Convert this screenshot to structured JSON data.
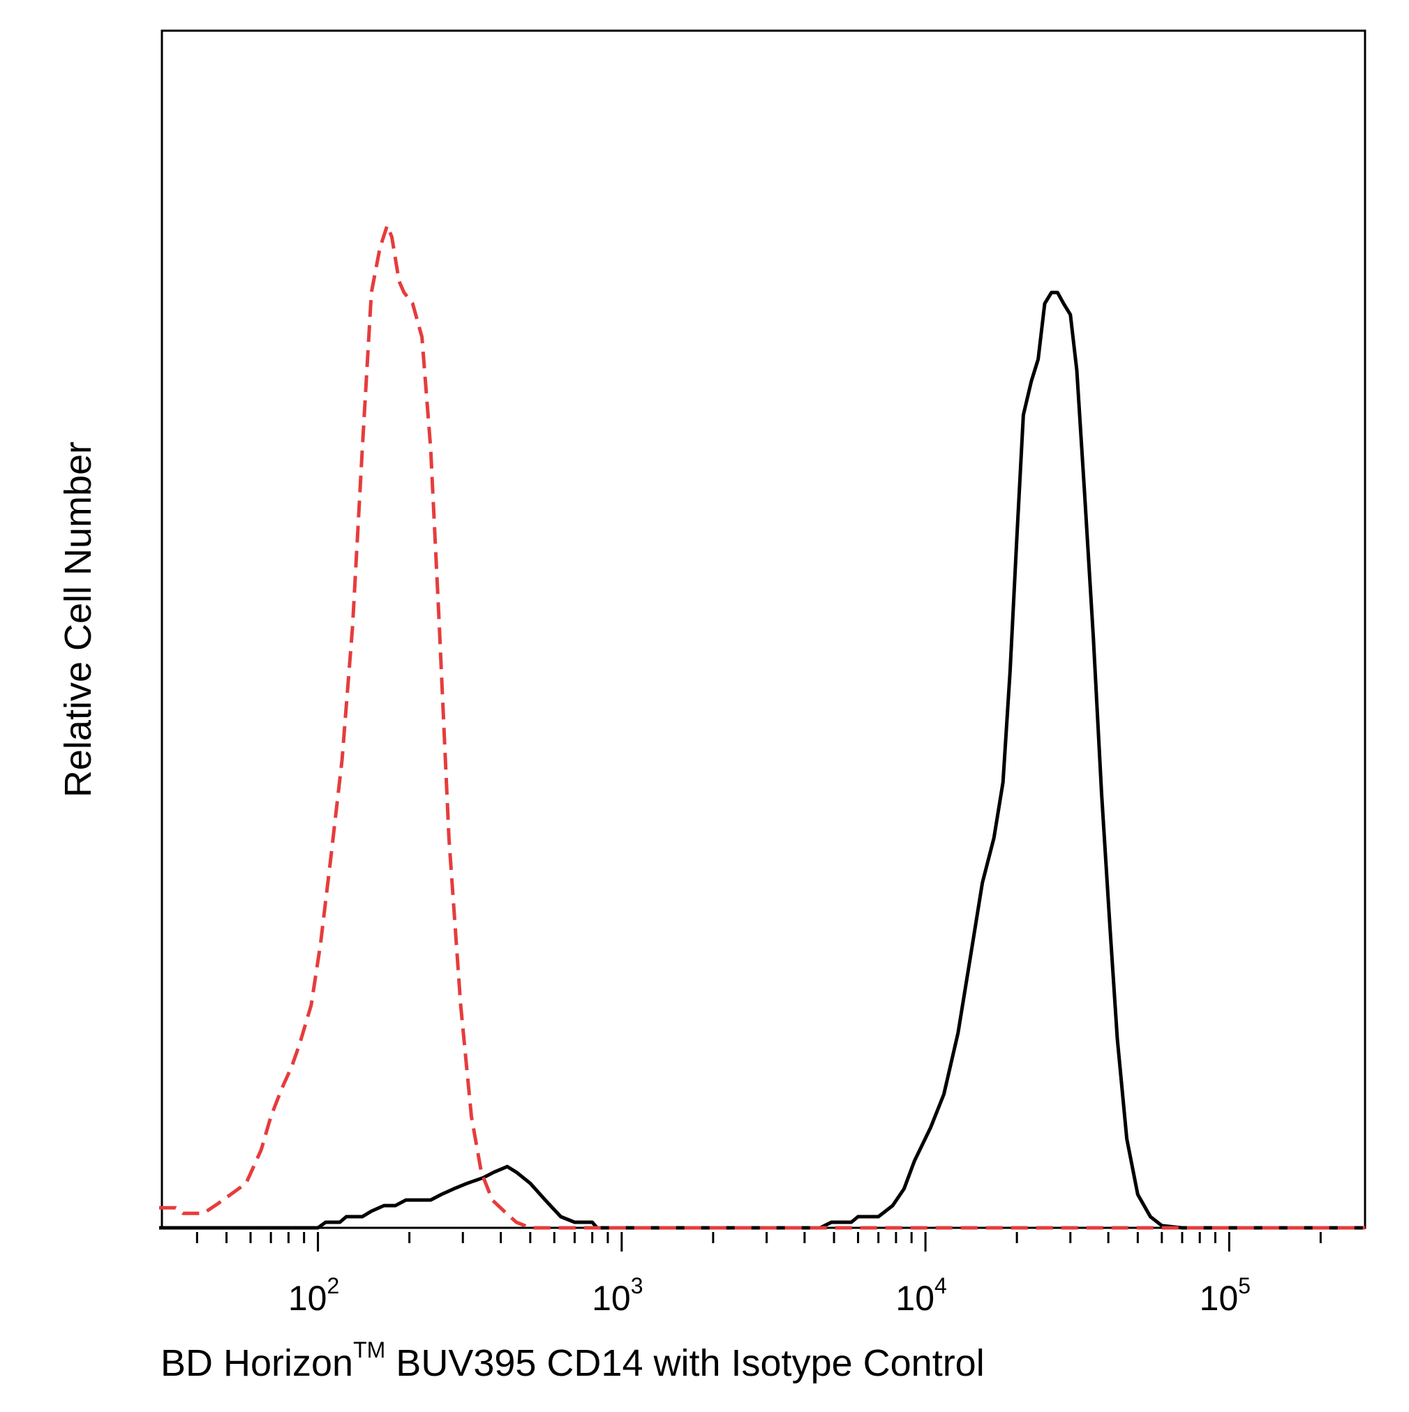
{
  "chart_data": {
    "type": "line",
    "title": "",
    "xlabel": {
      "prefix": "BD Horizon",
      "superscript": "TM",
      "suffix": " BUV395 CD14 with Isotype Control"
    },
    "ylabel": "Relative Cell Number",
    "x_scale": "log",
    "xlim": [
      30,
      280000
    ],
    "ylim": [
      0,
      1.05
    ],
    "grid": false,
    "legend": "none",
    "x_major_ticks": [
      {
        "value": 100,
        "base": "10",
        "exp": "2"
      },
      {
        "value": 1000,
        "base": "10",
        "exp": "3"
      },
      {
        "value": 10000,
        "base": "10",
        "exp": "4"
      },
      {
        "value": 100000,
        "base": "10",
        "exp": "5"
      }
    ],
    "x_minor_ticks": [
      40,
      50,
      60,
      70,
      80,
      90,
      200,
      300,
      400,
      500,
      600,
      700,
      800,
      900,
      2000,
      3000,
      4000,
      5000,
      6000,
      7000,
      8000,
      9000,
      20000,
      30000,
      40000,
      50000,
      60000,
      70000,
      80000,
      90000,
      200000
    ],
    "series": [
      {
        "color": "#000000",
        "style": "solid",
        "points": [
          [
            30,
            0
          ],
          [
            100,
            0
          ],
          [
            106,
            0.005
          ],
          [
            118,
            0.005
          ],
          [
            124,
            0.01
          ],
          [
            140,
            0.01
          ],
          [
            150,
            0.015
          ],
          [
            165,
            0.02
          ],
          [
            180,
            0.02
          ],
          [
            195,
            0.025
          ],
          [
            235,
            0.025
          ],
          [
            255,
            0.03
          ],
          [
            280,
            0.035
          ],
          [
            310,
            0.04
          ],
          [
            350,
            0.045
          ],
          [
            380,
            0.05
          ],
          [
            420,
            0.055
          ],
          [
            450,
            0.05
          ],
          [
            500,
            0.04
          ],
          [
            560,
            0.025
          ],
          [
            630,
            0.01
          ],
          [
            700,
            0.005
          ],
          [
            800,
            0.005
          ],
          [
            830,
            0
          ],
          [
            4500,
            0
          ],
          [
            4900,
            0.005
          ],
          [
            5700,
            0.005
          ],
          [
            6000,
            0.01
          ],
          [
            7000,
            0.01
          ],
          [
            7800,
            0.02
          ],
          [
            8500,
            0.035
          ],
          [
            9200,
            0.06
          ],
          [
            10400,
            0.09
          ],
          [
            11500,
            0.12
          ],
          [
            12800,
            0.175
          ],
          [
            14000,
            0.24
          ],
          [
            15400,
            0.31
          ],
          [
            16800,
            0.35
          ],
          [
            18000,
            0.4
          ],
          [
            19000,
            0.5
          ],
          [
            20000,
            0.62
          ],
          [
            21000,
            0.73
          ],
          [
            22300,
            0.76
          ],
          [
            23500,
            0.78
          ],
          [
            24700,
            0.83
          ],
          [
            26000,
            0.84
          ],
          [
            27200,
            0.84
          ],
          [
            28500,
            0.83
          ],
          [
            30000,
            0.82
          ],
          [
            31500,
            0.77
          ],
          [
            33400,
            0.66
          ],
          [
            35700,
            0.53
          ],
          [
            38000,
            0.39
          ],
          [
            40500,
            0.27
          ],
          [
            42800,
            0.17
          ],
          [
            46000,
            0.08
          ],
          [
            50000,
            0.03
          ],
          [
            55000,
            0.01
          ],
          [
            60000,
            0.002
          ],
          [
            70000,
            0
          ],
          [
            280000,
            0
          ]
        ]
      },
      {
        "color": "#e63c3c",
        "style": "dashed",
        "points": [
          [
            30,
            0.018
          ],
          [
            34,
            0.018
          ],
          [
            36,
            0.013
          ],
          [
            42,
            0.013
          ],
          [
            47,
            0.022
          ],
          [
            58,
            0.04
          ],
          [
            65,
            0.07
          ],
          [
            70,
            0.1
          ],
          [
            76,
            0.125
          ],
          [
            82,
            0.145
          ],
          [
            87,
            0.165
          ],
          [
            95,
            0.2
          ],
          [
            102,
            0.255
          ],
          [
            110,
            0.33
          ],
          [
            120,
            0.42
          ],
          [
            130,
            0.54
          ],
          [
            140,
            0.7
          ],
          [
            150,
            0.84
          ],
          [
            160,
            0.88
          ],
          [
            169,
            0.9
          ],
          [
            175,
            0.89
          ],
          [
            185,
            0.85
          ],
          [
            192,
            0.84
          ],
          [
            205,
            0.83
          ],
          [
            220,
            0.8
          ],
          [
            235,
            0.7
          ],
          [
            250,
            0.55
          ],
          [
            270,
            0.35
          ],
          [
            295,
            0.2
          ],
          [
            320,
            0.1
          ],
          [
            345,
            0.05
          ],
          [
            375,
            0.025
          ],
          [
            410,
            0.015
          ],
          [
            450,
            0.005
          ],
          [
            500,
            0
          ],
          [
            280000,
            0
          ]
        ]
      }
    ]
  }
}
